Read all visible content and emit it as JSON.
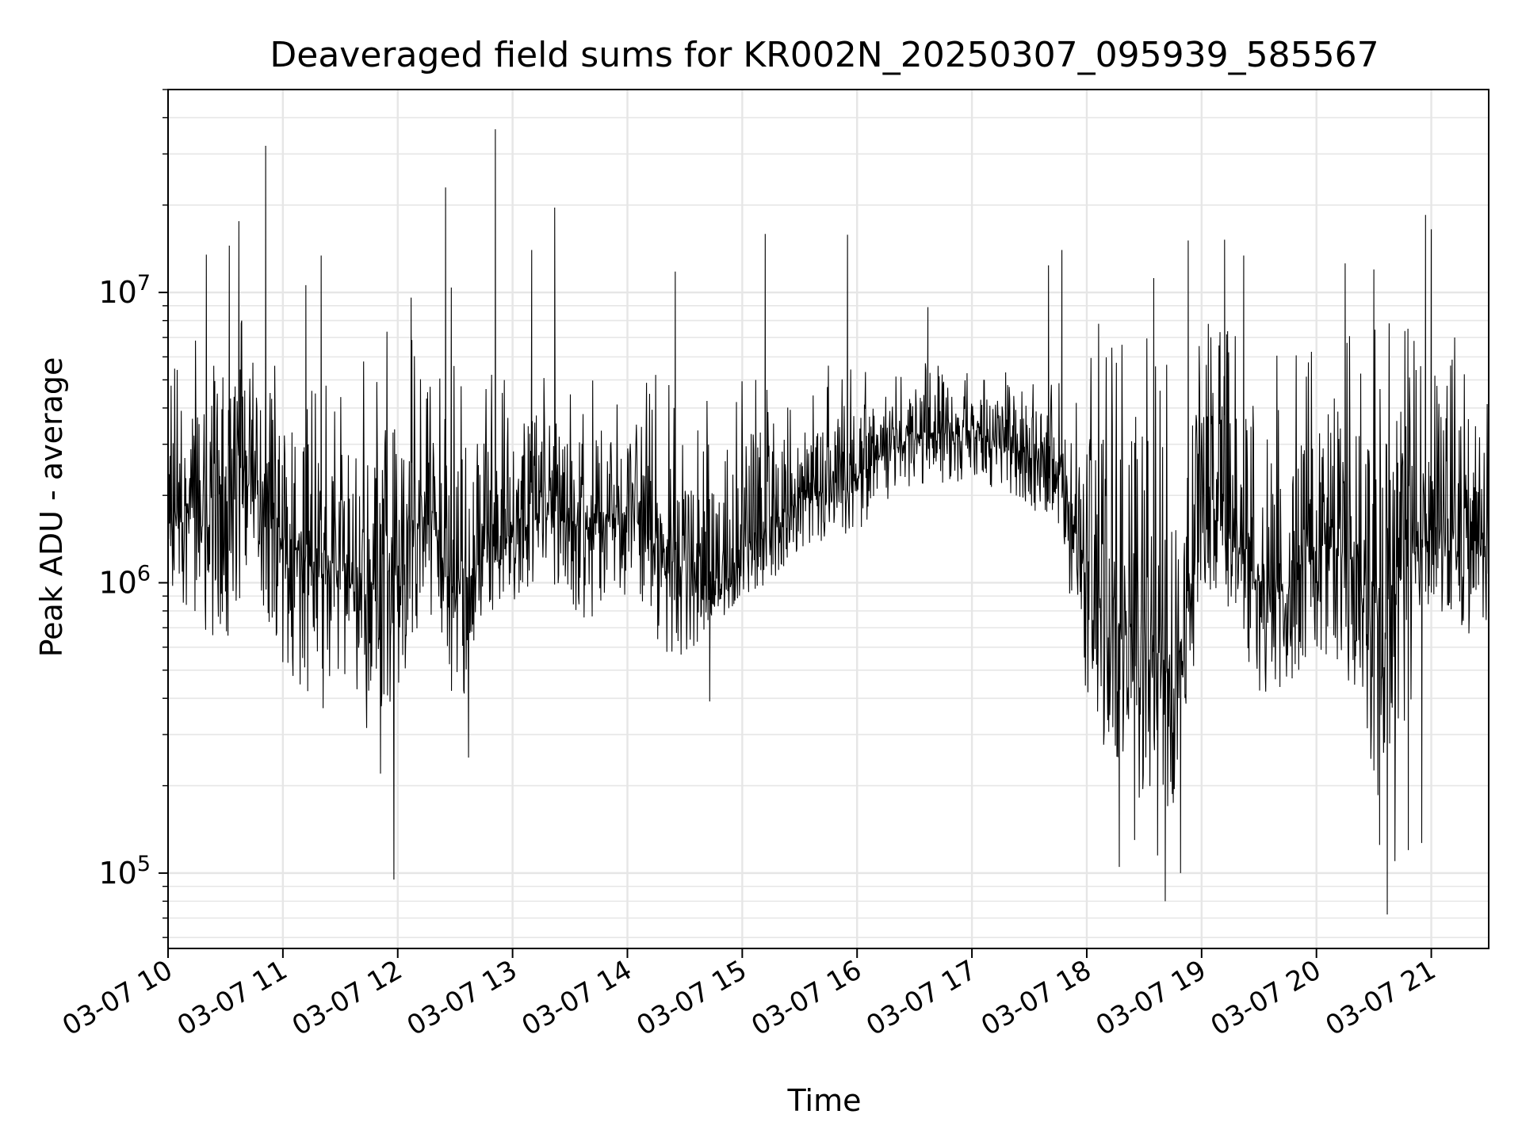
{
  "chart_data": {
    "type": "line",
    "title": "Deaveraged field sums for KR002N_20250307_095939_585567",
    "xlabel": "Time",
    "ylabel": "Peak ADU - average",
    "x_axis_type": "datetime",
    "xlim": [
      "2025-03-07 10:00",
      "2025-03-07 21:30"
    ],
    "x_ticks": [
      "03-07 10",
      "03-07 11",
      "03-07 12",
      "03-07 13",
      "03-07 14",
      "03-07 15",
      "03-07 16",
      "03-07 17",
      "03-07 18",
      "03-07 19",
      "03-07 20",
      "03-07 21"
    ],
    "y_scale": "log",
    "ylim": [
      55000,
      50000000
    ],
    "y_ticks": [
      {
        "value": 100000,
        "base": "10",
        "exp": "5"
      },
      {
        "value": 1000000,
        "base": "10",
        "exp": "6"
      },
      {
        "value": 10000000,
        "base": "10",
        "exp": "7"
      }
    ],
    "grid": true,
    "line_color": "#000000",
    "series": [
      {
        "x": [
          "10:00",
          "10:15",
          "10:30",
          "10:45",
          "11:00",
          "11:15",
          "11:30",
          "11:45",
          "12:00",
          "12:15",
          "12:30",
          "12:45",
          "13:00",
          "13:15",
          "13:30",
          "13:45",
          "14:00",
          "14:15",
          "14:30",
          "14:45",
          "15:00",
          "15:15",
          "15:30",
          "15:45",
          "16:00",
          "16:15",
          "16:30",
          "16:45",
          "17:00",
          "17:15",
          "17:30",
          "17:45",
          "18:00",
          "18:15",
          "18:30",
          "18:45",
          "19:00",
          "19:15",
          "19:30",
          "19:45",
          "20:00",
          "20:15",
          "20:30",
          "20:45",
          "21:00",
          "21:15",
          "21:30"
        ],
        "y": [
          1700000,
          2000000,
          1900000,
          2100000,
          1400000,
          1200000,
          1100000,
          800000,
          1200000,
          1800000,
          900000,
          1200000,
          1500000,
          1700000,
          1600000,
          1500000,
          1800000,
          1300000,
          1200000,
          900000,
          1300000,
          1600000,
          1900000,
          2100000,
          2400000,
          2800000,
          3100000,
          3300000,
          3200000,
          3000000,
          2700000,
          2400000,
          1100000,
          700000,
          700000,
          450000,
          1700000,
          1400000,
          1000000,
          900000,
          1300000,
          1500000,
          700000,
          1100000,
          1600000,
          1300000,
          1500000
        ],
        "y_min": [
          1000000,
          700000,
          600000,
          1000000,
          500000,
          400000,
          500000,
          300000,
          400000,
          900000,
          300000,
          700000,
          800000,
          900000,
          800000,
          700000,
          900000,
          600000,
          500000,
          700000,
          900000,
          1000000,
          1300000,
          1400000,
          1500000,
          1900000,
          2100000,
          2200000,
          2200000,
          2100000,
          1800000,
          1600000,
          400000,
          200000,
          150000,
          120000,
          800000,
          600000,
          400000,
          400000,
          600000,
          500000,
          150000,
          250000,
          900000,
          600000,
          700000
        ],
        "y_max": [
          5800000,
          7200000,
          9500000,
          7400000,
          6900000,
          5300000,
          4700000,
          9000000,
          9800000,
          5000000,
          7000000,
          5800000,
          5700000,
          6200000,
          5400000,
          5200000,
          4600000,
          5500000,
          4500000,
          5000000,
          5800000,
          4800000,
          4600000,
          5600000,
          5600000,
          5100000,
          5500000,
          6300000,
          5200000,
          5400000,
          4900000,
          6800000,
          7600000,
          9000000,
          9600000,
          7500000,
          8000000,
          7600000,
          7000000,
          6700000,
          6300000,
          7700000,
          8600000,
          8200000,
          7800000,
          7100000,
          6200000
        ],
        "spikes": [
          {
            "x": "10:20",
            "y": 13500000
          },
          {
            "x": "10:32",
            "y": 14500000
          },
          {
            "x": "10:37",
            "y": 17600000
          },
          {
            "x": "10:51",
            "y": 32000000
          },
          {
            "x": "11:20",
            "y": 13400000
          },
          {
            "x": "11:12",
            "y": 10600000
          },
          {
            "x": "12:07",
            "y": 9600000
          },
          {
            "x": "12:25",
            "y": 23000000
          },
          {
            "x": "12:28",
            "y": 10400000
          },
          {
            "x": "12:51",
            "y": 36500000
          },
          {
            "x": "13:10",
            "y": 14000000
          },
          {
            "x": "13:22",
            "y": 19600000
          },
          {
            "x": "14:25",
            "y": 11800000
          },
          {
            "x": "15:12",
            "y": 15900000
          },
          {
            "x": "15:55",
            "y": 15800000
          },
          {
            "x": "16:37",
            "y": 8900000
          },
          {
            "x": "17:47",
            "y": 14000000
          },
          {
            "x": "17:40",
            "y": 12400000
          },
          {
            "x": "18:35",
            "y": 11200000
          },
          {
            "x": "18:53",
            "y": 15100000
          },
          {
            "x": "19:12",
            "y": 15200000
          },
          {
            "x": "19:22",
            "y": 13400000
          },
          {
            "x": "20:15",
            "y": 12600000
          },
          {
            "x": "20:30",
            "y": 12000000
          },
          {
            "x": "20:57",
            "y": 18500000
          },
          {
            "x": "21:00",
            "y": 16500000
          }
        ],
        "dips": [
          {
            "x": "11:58",
            "y": 95000
          },
          {
            "x": "11:51",
            "y": 220000
          },
          {
            "x": "12:37",
            "y": 250000
          },
          {
            "x": "14:43",
            "y": 390000
          },
          {
            "x": "11:21",
            "y": 370000
          },
          {
            "x": "18:17",
            "y": 105000
          },
          {
            "x": "18:25",
            "y": 130000
          },
          {
            "x": "18:37",
            "y": 115000
          },
          {
            "x": "18:41",
            "y": 80000
          },
          {
            "x": "18:49",
            "y": 100000
          },
          {
            "x": "20:37",
            "y": 72000
          },
          {
            "x": "20:33",
            "y": 125000
          },
          {
            "x": "20:48",
            "y": 120000
          },
          {
            "x": "20:55",
            "y": 127000
          },
          {
            "x": "20:41",
            "y": 110000
          }
        ]
      }
    ]
  }
}
